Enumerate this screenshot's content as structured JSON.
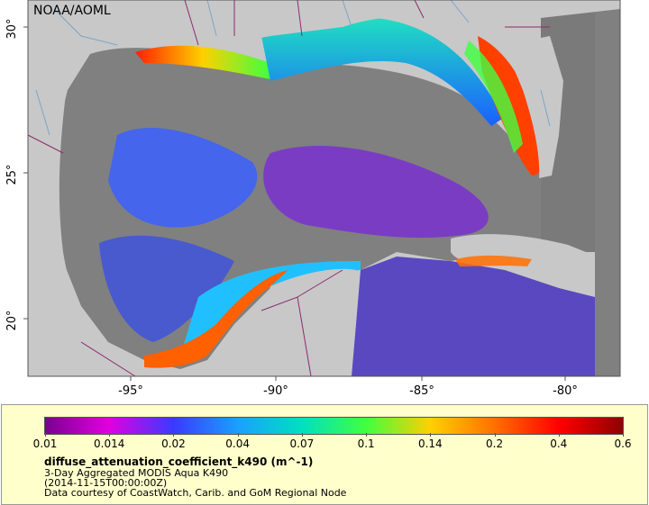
{
  "map": {
    "credit": "NOAA/AOML",
    "lon_labels": [
      "-95°",
      "-90°",
      "-85°",
      "-80°"
    ],
    "lat_labels": [
      "30°",
      "25°",
      "20°"
    ],
    "colors": {
      "land": "#c8c8c8",
      "no_data": "#808080",
      "border": "#8b2a6e",
      "river": "#7aa6c9"
    }
  },
  "legend": {
    "ticks": [
      "0.01",
      "0.014",
      "0.02",
      "0.04",
      "0.07",
      "0.1",
      "0.14",
      "0.2",
      "0.4",
      "0.6"
    ],
    "variable": "diffuse_attenuation_coefficient_k490 (m^-1)",
    "dataset": "3-Day Aggregated MODIS Aqua K490",
    "time": "(2014-11-15T00:00:00Z)",
    "courtesy": "Data courtesy of CoastWatch, Carib. and GoM Regional Node",
    "colors": [
      "#7a0090",
      "#e000e0",
      "#3a3aff",
      "#1aa0ff",
      "#00e0c0",
      "#40ff40",
      "#ffd000",
      "#ff7000",
      "#ff0000",
      "#900000"
    ]
  }
}
